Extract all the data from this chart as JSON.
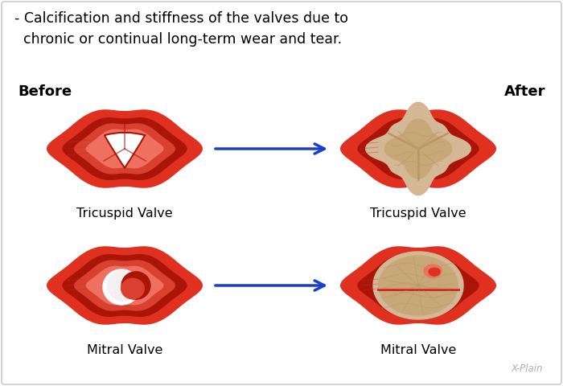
{
  "title_text": "- Calcification and stiffness of the valves due to\n  chronic or continual long-term wear and tear.",
  "before_label": "Before",
  "after_label": "After",
  "tricuspid_label": "Tricuspid Valve",
  "mitral_label": "Mitral Valve",
  "bg_color": "#ffffff",
  "text_color": "#000000",
  "red_outer": "#e03020",
  "red_mid": "#cc2010",
  "red_dark": "#aa1508",
  "red_light": "#f07060",
  "red_inner": "#d94030",
  "calcified_color": "#d4b896",
  "calcified_mid": "#c8a878",
  "calcified_dark": "#b8956a",
  "arrow_color": "#1a3fcc",
  "watermark": "X-Plain",
  "title_fontsize": 12.5,
  "label_fontsize": 11.5,
  "before_after_fontsize": 13
}
